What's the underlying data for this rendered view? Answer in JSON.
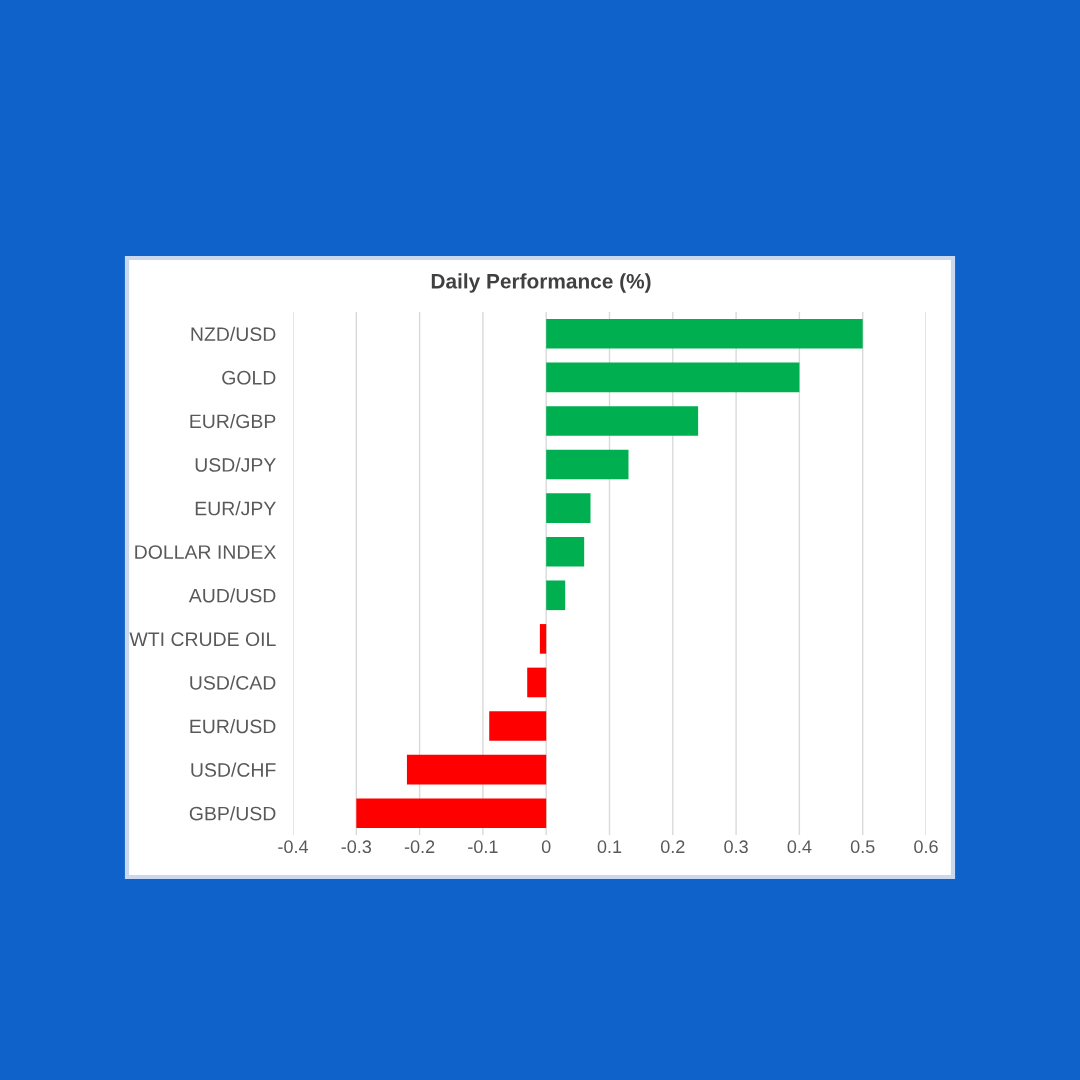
{
  "chart_data": {
    "type": "bar",
    "orientation": "horizontal",
    "title": "Daily Performance (%)",
    "categories": [
      "NZD/USD",
      "GOLD",
      "EUR/GBP",
      "USD/JPY",
      "EUR/JPY",
      "DOLLAR INDEX",
      "AUD/USD",
      "WTI CRUDE OIL",
      "USD/CAD",
      "EUR/USD",
      "USD/CHF",
      "GBP/USD"
    ],
    "values": [
      0.5,
      0.4,
      0.24,
      0.13,
      0.07,
      0.06,
      0.03,
      -0.01,
      -0.03,
      -0.09,
      -0.22,
      -0.3
    ],
    "colors": [
      "#00b050",
      "#00b050",
      "#00b050",
      "#00b050",
      "#00b050",
      "#00b050",
      "#00b050",
      "#ff0000",
      "#ff0000",
      "#ff0000",
      "#ff0000",
      "#ff0000"
    ],
    "xlim": [
      -0.4,
      0.6
    ],
    "xticks": [
      -0.4,
      -0.3,
      -0.2,
      -0.1,
      0,
      0.1,
      0.2,
      0.3,
      0.4,
      0.5,
      0.6
    ],
    "grid": "x",
    "legend": false
  }
}
